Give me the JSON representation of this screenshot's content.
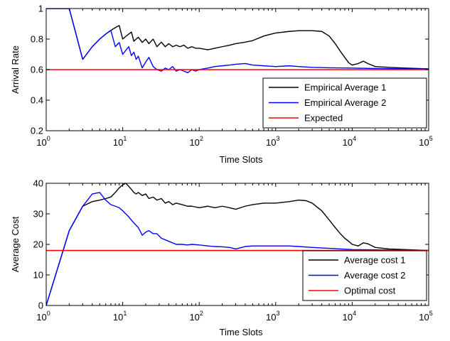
{
  "chart_data": [
    {
      "type": "line",
      "x_scale": "log",
      "xlim": [
        1,
        100000
      ],
      "ylim": [
        0.2,
        1
      ],
      "xlabel": "Time Slots",
      "ylabel": "Arrival Rate",
      "title": "",
      "grid": false,
      "legend": "bottom-right",
      "x_tick_base": "10",
      "x_tick_exponents": [
        "0",
        "1",
        "2",
        "3",
        "4",
        "5"
      ],
      "y_ticks": [
        "0.2",
        "0.4",
        "0.6",
        "0.8",
        "1"
      ],
      "series": [
        {
          "name": "Empirical Average 1",
          "color": "#000000",
          "x": [
            1,
            2,
            3,
            4,
            5,
            6,
            7,
            8,
            9,
            10,
            11,
            12,
            13,
            14,
            15,
            16,
            18,
            20,
            22,
            25,
            28,
            32,
            36,
            40,
            45,
            50,
            56,
            63,
            71,
            80,
            90,
            100,
            130,
            160,
            200,
            250,
            300,
            400,
            500,
            700,
            1000,
            1500,
            2000,
            3000,
            4000,
            5000,
            6000,
            7000,
            8000,
            9000,
            10000,
            12000,
            14000,
            16000,
            20000,
            30000,
            50000,
            100000
          ],
          "y": [
            1,
            1,
            0.667,
            0.75,
            0.8,
            0.833,
            0.857,
            0.875,
            0.889,
            0.8,
            0.818,
            0.833,
            0.846,
            0.786,
            0.8,
            0.812,
            0.778,
            0.8,
            0.77,
            0.8,
            0.75,
            0.78,
            0.75,
            0.77,
            0.75,
            0.76,
            0.75,
            0.76,
            0.74,
            0.75,
            0.74,
            0.74,
            0.73,
            0.74,
            0.75,
            0.76,
            0.77,
            0.78,
            0.79,
            0.82,
            0.84,
            0.85,
            0.855,
            0.855,
            0.85,
            0.82,
            0.77,
            0.72,
            0.68,
            0.645,
            0.63,
            0.64,
            0.655,
            0.64,
            0.62,
            0.615,
            0.61,
            0.605
          ]
        },
        {
          "name": "Empirical Average 2",
          "color": "#0000ff",
          "x": [
            1,
            2,
            3,
            4,
            5,
            6,
            7,
            8,
            9,
            10,
            11,
            12,
            13,
            14,
            15,
            16,
            18,
            20,
            22,
            25,
            28,
            32,
            36,
            40,
            45,
            50,
            56,
            63,
            71,
            80,
            90,
            100,
            130,
            160,
            200,
            250,
            300,
            400,
            500,
            700,
            1000,
            1500,
            2000,
            3000,
            5000,
            10000,
            20000,
            50000,
            100000
          ],
          "y": [
            1,
            1,
            0.667,
            0.75,
            0.8,
            0.833,
            0.857,
            0.75,
            0.778,
            0.7,
            0.727,
            0.75,
            0.692,
            0.714,
            0.667,
            0.688,
            0.611,
            0.65,
            0.68,
            0.62,
            0.6,
            0.59,
            0.61,
            0.6,
            0.62,
            0.59,
            0.6,
            0.59,
            0.58,
            0.6,
            0.59,
            0.6,
            0.61,
            0.62,
            0.625,
            0.63,
            0.635,
            0.64,
            0.63,
            0.625,
            0.62,
            0.625,
            0.62,
            0.615,
            0.612,
            0.61,
            0.607,
            0.605,
            0.603
          ]
        },
        {
          "name": "Expected",
          "color": "#ff0000",
          "x": [
            1,
            100000
          ],
          "y": [
            0.6,
            0.6
          ]
        }
      ]
    },
    {
      "type": "line",
      "x_scale": "log",
      "xlim": [
        1,
        100000
      ],
      "ylim": [
        0,
        40
      ],
      "xlabel": "Time Slots",
      "ylabel": "Average Cost",
      "title": "",
      "grid": false,
      "legend": "bottom-right",
      "x_tick_base": "10",
      "x_tick_exponents": [
        "0",
        "1",
        "2",
        "3",
        "4",
        "5"
      ],
      "y_ticks": [
        "0",
        "10",
        "20",
        "30",
        "40"
      ],
      "series": [
        {
          "name": "Average cost 1",
          "color": "#000000",
          "x": [
            1,
            2,
            3,
            4,
            5,
            6,
            7,
            8,
            9,
            10,
            11,
            12,
            13,
            14,
            15,
            16,
            18,
            20,
            22,
            25,
            28,
            32,
            36,
            40,
            45,
            50,
            60,
            70,
            80,
            100,
            130,
            160,
            200,
            250,
            300,
            400,
            500,
            700,
            1000,
            1500,
            2000,
            2500,
            3000,
            4000,
            5000,
            6000,
            7000,
            8000,
            9000,
            10000,
            12000,
            14000,
            16000,
            20000,
            30000,
            50000,
            100000
          ],
          "y": [
            0,
            24.5,
            32.5,
            34,
            34.5,
            35,
            35.5,
            37,
            38.5,
            39.5,
            40,
            39,
            38,
            37,
            36.5,
            37,
            36,
            36.5,
            35,
            35.5,
            34.5,
            35,
            33.5,
            34,
            33,
            33.5,
            33,
            32.5,
            32.5,
            32,
            32.5,
            32,
            32.5,
            32,
            31.5,
            32.5,
            33,
            33.5,
            33.5,
            34,
            34.5,
            34.3,
            33.5,
            31,
            28,
            25.5,
            23.5,
            22,
            21,
            20,
            19.5,
            20.5,
            20.2,
            19,
            18.5,
            18.3,
            18
          ]
        },
        {
          "name": "Average cost 2",
          "color": "#0000ff",
          "x": [
            1,
            2,
            3,
            4,
            5,
            6,
            7,
            8,
            9,
            10,
            12,
            14,
            16,
            18,
            20,
            22,
            25,
            28,
            32,
            36,
            40,
            45,
            50,
            60,
            70,
            80,
            100,
            130,
            160,
            200,
            250,
            300,
            400,
            500,
            700,
            1000,
            1500,
            2000,
            3000,
            5000,
            7000,
            10000,
            20000,
            50000,
            100000
          ],
          "y": [
            0,
            24.5,
            32.5,
            36.5,
            37,
            34.5,
            33,
            32.5,
            32,
            31,
            29,
            27,
            25.5,
            23,
            24,
            24.5,
            23.5,
            23.5,
            22,
            21.5,
            21,
            20.5,
            20,
            20,
            19.8,
            20,
            19.8,
            19.5,
            19.3,
            19.2,
            19,
            18.5,
            19.3,
            19.5,
            19.5,
            19.5,
            19.5,
            19.3,
            19,
            18.7,
            18.5,
            18.3,
            18.2,
            18.1,
            18
          ]
        },
        {
          "name": "Optimal cost",
          "color": "#ff0000",
          "x": [
            1,
            100000
          ],
          "y": [
            18,
            18
          ]
        }
      ]
    }
  ]
}
